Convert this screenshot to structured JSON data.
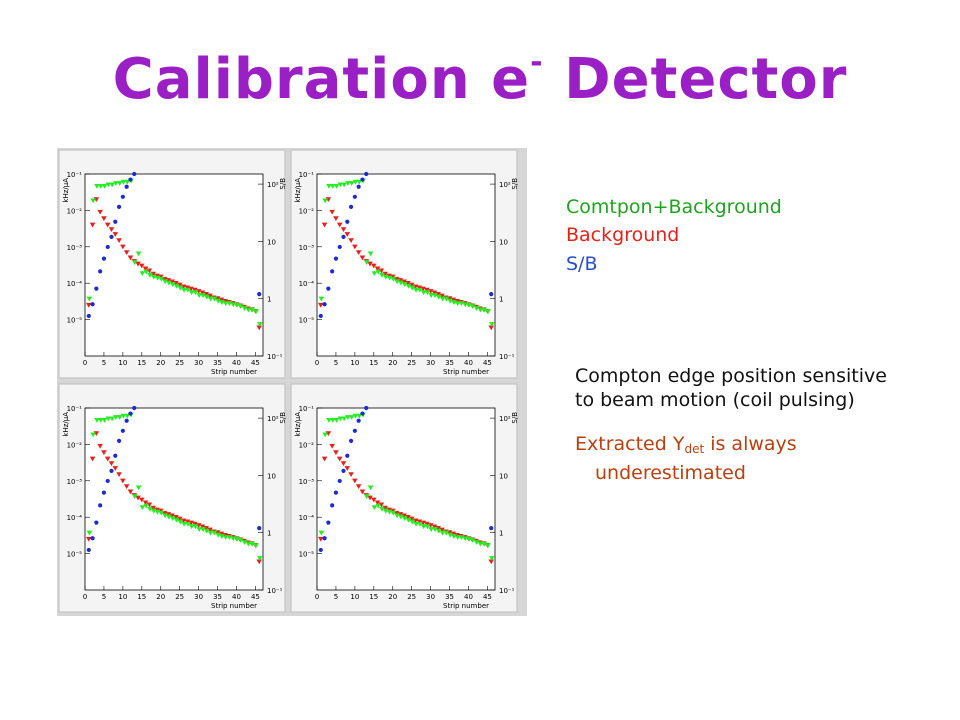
{
  "slide": {
    "title_main": "Calibration e",
    "title_sup": "-",
    "title_tail": " Detector"
  },
  "legend": {
    "items": [
      {
        "label": "Comtpon+Background",
        "color": "#1fa41f"
      },
      {
        "label": "Background",
        "color": "#e2231a"
      },
      {
        "label": "S/B",
        "color": "#2a4ec4"
      }
    ]
  },
  "notes": {
    "line1": "Compton edge position sensitive",
    "line2": "to beam motion (coil pulsing)",
    "arrow": "",
    "extracted_pre": "Extracted Y",
    "extracted_sub": "det",
    "extracted_post": " is always",
    "line4": "underestimated"
  },
  "colors": {
    "compton": "#22ee22",
    "background": "#e2231a",
    "sb": "#1a2ad6",
    "panel_bg": "#e8e8e8",
    "frame": "#c8c8c8"
  },
  "chart_data": [
    {
      "type": "scatter",
      "xlabel": "Strip number",
      "ylabel": "kHz/μA",
      "y2label": "S/B",
      "xlim": [
        0,
        47
      ],
      "ylim": [
        1e-06,
        0.1
      ],
      "y2lim": [
        0.1,
        150
      ],
      "yscale": "log",
      "y2scale": "log",
      "xticks": [
        "0",
        "5",
        "10",
        "15",
        "20",
        "25",
        "30",
        "35",
        "40",
        "45"
      ],
      "yticks": [
        "10⁻¹",
        "10⁻²",
        "10⁻³",
        "10⁻⁴",
        "10⁻⁵"
      ],
      "y2ticks": [
        "10²",
        "10",
        "1",
        "10⁻¹"
      ],
      "series": [
        {
          "name": "Comtpon+Background",
          "x": [
            1,
            2,
            3,
            4,
            5,
            6,
            7,
            8,
            9,
            10,
            11,
            12,
            13,
            14,
            15,
            16,
            17,
            18,
            19,
            20,
            21,
            22,
            23,
            24,
            25,
            26,
            27,
            28,
            29,
            30,
            31,
            32,
            33,
            34,
            35,
            36,
            37,
            38,
            39,
            40,
            41,
            42,
            43,
            44,
            45,
            46
          ],
          "y": [
            4e-05,
            0.02,
            0.05,
            0.05,
            0.05,
            0.055,
            0.055,
            0.06,
            0.06,
            0.065,
            0.065,
            0.07,
            0.0004,
            0.0007,
            0.0002,
            0.00022,
            0.00018,
            0.00016,
            0.00015,
            0.00014,
            0.00012,
            0.00011,
            0.0001,
            9e-05,
            8e-05,
            7e-05,
            7e-05,
            6e-05,
            6e-05,
            5e-05,
            5e-05,
            4.5e-05,
            4e-05,
            4e-05,
            3.5e-05,
            3.2e-05,
            3e-05,
            3e-05,
            2.8e-05,
            2.7e-05,
            2.5e-05,
            2.2e-05,
            2e-05,
            2e-05,
            1.8e-05,
            8e-06
          ]
        },
        {
          "name": "Background",
          "x": [
            1,
            2,
            3,
            4,
            5,
            6,
            7,
            8,
            9,
            10,
            11,
            12,
            13,
            14,
            15,
            16,
            17,
            18,
            19,
            20,
            21,
            22,
            23,
            24,
            25,
            26,
            27,
            28,
            29,
            30,
            31,
            32,
            33,
            34,
            35,
            36,
            37,
            38,
            39,
            40,
            41,
            42,
            43,
            44,
            45,
            46
          ],
          "y": [
            2.5e-05,
            0.004,
            0.02,
            0.009,
            0.006,
            0.004,
            0.003,
            0.0022,
            0.0015,
            0.001,
            0.0007,
            0.0005,
            0.0004,
            0.00034,
            0.0003,
            0.00025,
            0.00022,
            0.00018,
            0.00016,
            0.00015,
            0.00013,
            0.00012,
            0.00011,
            0.0001,
            9e-05,
            8e-05,
            7.5e-05,
            7e-05,
            6.5e-05,
            6e-05,
            5.5e-05,
            5e-05,
            4.5e-05,
            4e-05,
            3.8e-05,
            3.5e-05,
            3.2e-05,
            3e-05,
            2.8e-05,
            2.6e-05,
            2.4e-05,
            2.2e-05,
            2e-05,
            1.9e-05,
            1.7e-05,
            6e-06
          ]
        },
        {
          "name": "S/B",
          "x": [
            1,
            2,
            3,
            4,
            5,
            6,
            7,
            8,
            9,
            10,
            11,
            12,
            13,
            46
          ],
          "y2": [
            0.5,
            0.8,
            1.5,
            3,
            5,
            8,
            12,
            22,
            40,
            60,
            90,
            120,
            150,
            1.2
          ]
        }
      ]
    }
  ]
}
